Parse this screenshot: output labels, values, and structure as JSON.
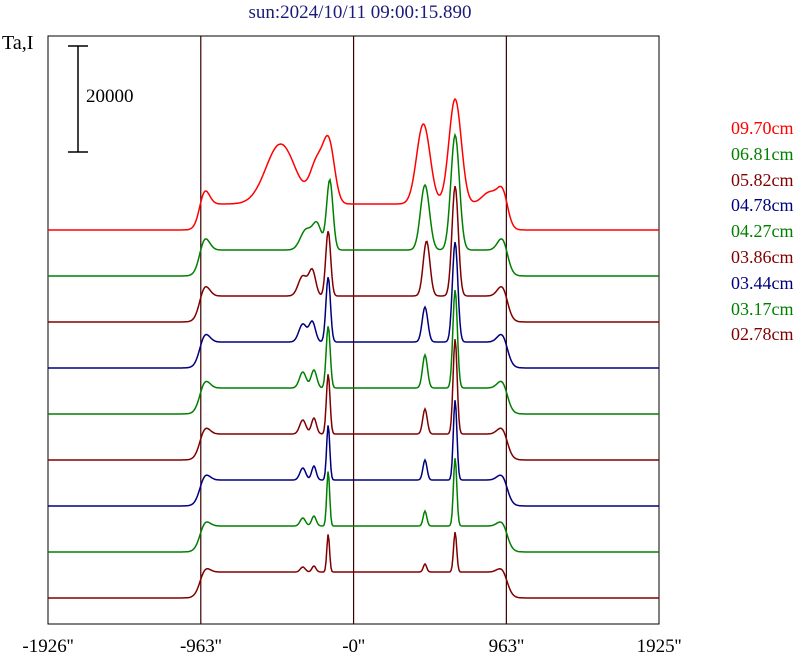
{
  "chart_data": {
    "type": "line",
    "title": "sun:2024/10/11 09:00:15.890",
    "ylabel": "Ta,I",
    "scale_bar_label": "20000",
    "x_ticks": [
      {
        "value": -1926,
        "label": "-1926''"
      },
      {
        "value": -963,
        "label": "-963''"
      },
      {
        "value": 0,
        "label": "-0''"
      },
      {
        "value": 963,
        "label": "963''"
      },
      {
        "value": 1925,
        "label": "1925''"
      }
    ],
    "xlim": [
      -1926,
      1925
    ],
    "vertical_lines": [
      -963,
      0,
      963
    ],
    "grid": false,
    "legend_position": "right",
    "series": [
      {
        "name": "09.70cm",
        "color": "#ff0000",
        "offset": 8,
        "limb_bump": 18,
        "peaks": [
          {
            "x": -460,
            "a": 60,
            "w": 130
          },
          {
            "x": -230,
            "a": 40,
            "w": 60
          },
          {
            "x": -155,
            "a": 58,
            "w": 50
          },
          {
            "x": 440,
            "a": 80,
            "w": 60
          },
          {
            "x": 640,
            "a": 105,
            "w": 55
          },
          {
            "x": 860,
            "a": 12,
            "w": 70
          }
        ]
      },
      {
        "name": "06.81cm",
        "color": "#008000",
        "offset": 7,
        "limb_bump": 16,
        "peaks": [
          {
            "x": -300,
            "a": 20,
            "w": 50
          },
          {
            "x": -230,
            "a": 25,
            "w": 40
          },
          {
            "x": -150,
            "a": 70,
            "w": 28
          },
          {
            "x": 450,
            "a": 65,
            "w": 40
          },
          {
            "x": 640,
            "a": 115,
            "w": 38
          }
        ]
      },
      {
        "name": "05.82cm",
        "color": "#800000",
        "offset": 6,
        "limb_bump": 14,
        "peaks": [
          {
            "x": -320,
            "a": 20,
            "w": 40
          },
          {
            "x": -260,
            "a": 25,
            "w": 30
          },
          {
            "x": -160,
            "a": 65,
            "w": 22
          },
          {
            "x": 460,
            "a": 55,
            "w": 30
          },
          {
            "x": 640,
            "a": 110,
            "w": 28
          }
        ]
      },
      {
        "name": "04.78cm",
        "color": "#00007f",
        "offset": 5,
        "limb_bump": 12,
        "peaks": [
          {
            "x": -320,
            "a": 18,
            "w": 35
          },
          {
            "x": -260,
            "a": 20,
            "w": 28
          },
          {
            "x": -160,
            "a": 65,
            "w": 20
          },
          {
            "x": 450,
            "a": 35,
            "w": 25
          },
          {
            "x": 640,
            "a": 100,
            "w": 24
          }
        ]
      },
      {
        "name": "04.27cm",
        "color": "#008000",
        "offset": 4,
        "limb_bump": 11,
        "peaks": [
          {
            "x": -320,
            "a": 16,
            "w": 30
          },
          {
            "x": -250,
            "a": 18,
            "w": 25
          },
          {
            "x": -160,
            "a": 62,
            "w": 18
          },
          {
            "x": 450,
            "a": 33,
            "w": 22
          },
          {
            "x": 640,
            "a": 98,
            "w": 20
          }
        ]
      },
      {
        "name": "03.86cm",
        "color": "#800000",
        "offset": 3,
        "limb_bump": 10,
        "peaks": [
          {
            "x": -320,
            "a": 14,
            "w": 28
          },
          {
            "x": -250,
            "a": 16,
            "w": 22
          },
          {
            "x": -160,
            "a": 60,
            "w": 16
          },
          {
            "x": 450,
            "a": 25,
            "w": 20
          },
          {
            "x": 640,
            "a": 95,
            "w": 18
          }
        ]
      },
      {
        "name": "03.44cm",
        "color": "#00007f",
        "offset": 2,
        "limb_bump": 9,
        "peaks": [
          {
            "x": -320,
            "a": 12,
            "w": 26
          },
          {
            "x": -250,
            "a": 14,
            "w": 20
          },
          {
            "x": -160,
            "a": 55,
            "w": 14
          },
          {
            "x": 450,
            "a": 20,
            "w": 18
          },
          {
            "x": 640,
            "a": 80,
            "w": 16
          }
        ]
      },
      {
        "name": "03.17cm",
        "color": "#008000",
        "offset": 1,
        "limb_bump": 8,
        "peaks": [
          {
            "x": -320,
            "a": 8,
            "w": 24
          },
          {
            "x": -250,
            "a": 10,
            "w": 20
          },
          {
            "x": -160,
            "a": 55,
            "w": 13
          },
          {
            "x": 450,
            "a": 15,
            "w": 16
          },
          {
            "x": 640,
            "a": 68,
            "w": 15
          }
        ]
      },
      {
        "name": "02.78cm",
        "color": "#800000",
        "offset": 0,
        "limb_bump": 7,
        "peaks": [
          {
            "x": -320,
            "a": 5,
            "w": 22
          },
          {
            "x": -250,
            "a": 6,
            "w": 18
          },
          {
            "x": -160,
            "a": 38,
            "w": 12
          },
          {
            "x": 450,
            "a": 8,
            "w": 15
          },
          {
            "x": 640,
            "a": 40,
            "w": 14
          }
        ]
      }
    ]
  }
}
